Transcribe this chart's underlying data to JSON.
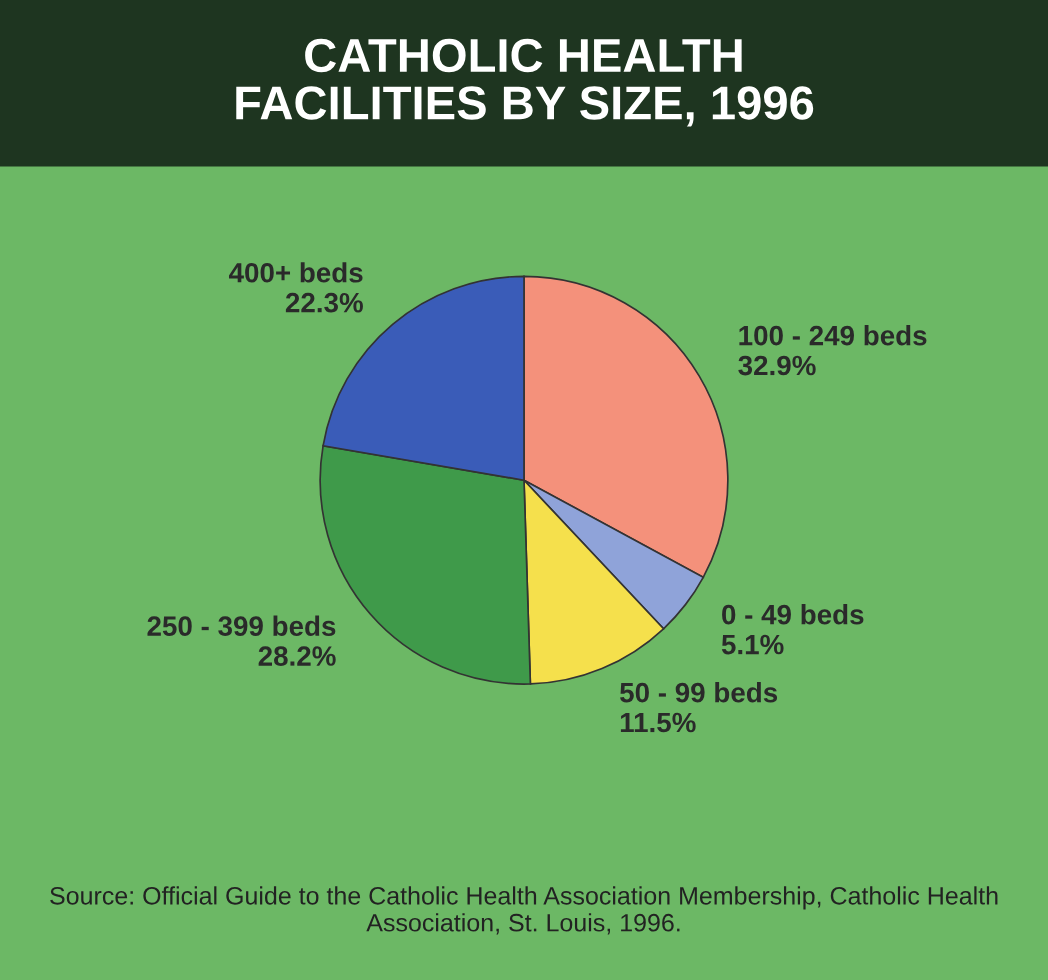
{
  "chart_data": {
    "type": "pie",
    "title": "CATHOLIC HEALTH\nFACILITIES BY SIZE, 1996",
    "categories": [
      "100 - 249 beds",
      "0 - 49 beds",
      "50 - 99 beds",
      "250 - 399 beds",
      "400+ beds"
    ],
    "values": [
      32.9,
      5.1,
      11.5,
      28.2,
      22.3
    ],
    "value_labels": [
      "32.9%",
      "5.1%",
      "11.5%",
      "28.2%",
      "22.3%"
    ],
    "colors": [
      "#f4917b",
      "#8fa3d9",
      "#f5e04c",
      "#3f9a4a",
      "#3a5cb8"
    ],
    "annotations": [
      "Source: Official Guide to the Catholic Health Association Membership, Catholic Health Association, St. Louis, 1996."
    ],
    "legend": false
  }
}
